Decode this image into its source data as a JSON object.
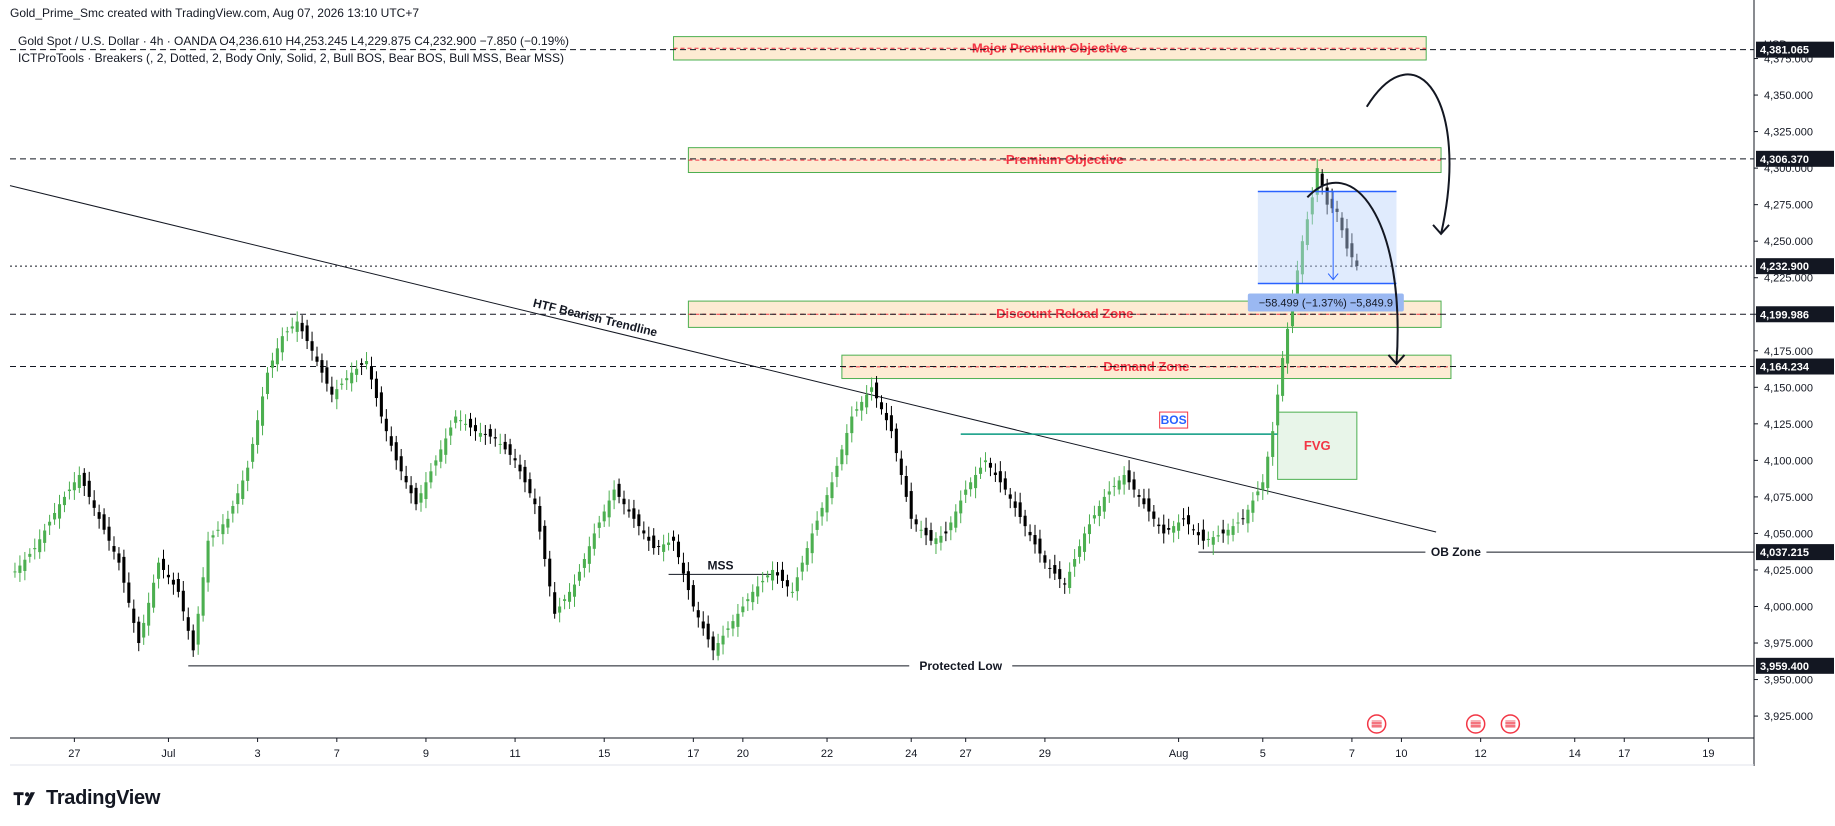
{
  "header": {
    "publisher": "Gold_Prime_Smc created with TradingView.com, Aug 07, 2026 13:10 UTC+7"
  },
  "legend": {
    "line1": "Gold Spot / U.S. Dollar · 4h · OANDA  O4,236.610  H4,253.245  L4,229.875  C4,232.900  −7.850 (−0.19%)",
    "line2": "ICTProTools · Breakers (, 2, Dotted, 2, Body Only, Solid, 2, Bull BOS, Bear BOS, Bull MSS, Bear MSS)"
  },
  "footer": {
    "brand": "TradingView"
  },
  "colors": {
    "bull": "#4caf50",
    "bear": "#000000",
    "zone_fill": "#fdebd3",
    "zone_border": "#4caf50",
    "zone_label": "#f23645",
    "fvg_fill": "#e8f5e9",
    "measure_fill": "#bbd2fb",
    "measure_border": "#2962ff",
    "structure_green": "#089981",
    "structure_red": "#f23645"
  },
  "chart_data": {
    "type": "candlestick",
    "symbol": "Gold Spot / U.S. Dollar",
    "timeframe": "4h",
    "exchange": "OANDA",
    "ohlc_last": {
      "open": 4236.61,
      "high": 4253.245,
      "low": 4229.875,
      "close": 4232.9,
      "change": -7.85,
      "change_pct": -0.19
    },
    "y_axis": {
      "currency": "USD",
      "range": [
        3910,
        4400
      ],
      "ticks": [
        3925,
        3950,
        3975,
        4000,
        4025,
        4050,
        4075,
        4100,
        4125,
        4150,
        4175,
        4200,
        4225,
        4250,
        4275,
        4300,
        4325,
        4350,
        4375
      ],
      "tick_labels": [
        "3,925.000",
        "3,950.000",
        "3,975.000",
        "4,000.000",
        "4,025.000",
        "4,050.000",
        "4,075.000",
        "4,100.000",
        "4,125.000",
        "4,150.000",
        "4,175.000",
        "4,200.000",
        "4,225.000",
        "4,250.000",
        "4,275.000",
        "4,300.000",
        "4,325.000",
        "4,350.000",
        "4,375.000"
      ]
    },
    "x_axis": {
      "range": [
        0,
        352
      ],
      "ticks": [
        {
          "i": 13,
          "label": "27"
        },
        {
          "i": 32,
          "label": "Jul"
        },
        {
          "i": 50,
          "label": "3"
        },
        {
          "i": 66,
          "label": "7"
        },
        {
          "i": 84,
          "label": "9"
        },
        {
          "i": 102,
          "label": "11"
        },
        {
          "i": 120,
          "label": "15"
        },
        {
          "i": 138,
          "label": "17"
        },
        {
          "i": 148,
          "label": "20"
        },
        {
          "i": 165,
          "label": "22"
        },
        {
          "i": 182,
          "label": "24"
        },
        {
          "i": 193,
          "label": "27"
        },
        {
          "i": 209,
          "label": "29"
        },
        {
          "i": 236,
          "label": "Aug"
        },
        {
          "i": 253,
          "label": "5"
        },
        {
          "i": 271,
          "label": "7"
        },
        {
          "i": 281,
          "label": "10"
        },
        {
          "i": 297,
          "label": "12"
        },
        {
          "i": 316,
          "label": "14"
        },
        {
          "i": 326,
          "label": "17"
        },
        {
          "i": 343,
          "label": "19"
        }
      ]
    },
    "grid": false,
    "anchors": [
      [
        0,
        4020
      ],
      [
        5,
        4040
      ],
      [
        10,
        4070
      ],
      [
        14,
        4090
      ],
      [
        18,
        4060
      ],
      [
        22,
        4030
      ],
      [
        26,
        3975
      ],
      [
        30,
        4030
      ],
      [
        34,
        4010
      ],
      [
        37,
        3970
      ],
      [
        40,
        4045
      ],
      [
        44,
        4060
      ],
      [
        48,
        4095
      ],
      [
        52,
        4160
      ],
      [
        55,
        4185
      ],
      [
        58,
        4195
      ],
      [
        61,
        4175
      ],
      [
        65,
        4145
      ],
      [
        69,
        4160
      ],
      [
        72,
        4168
      ],
      [
        75,
        4130
      ],
      [
        78,
        4100
      ],
      [
        82,
        4070
      ],
      [
        86,
        4100
      ],
      [
        90,
        4130
      ],
      [
        94,
        4120
      ],
      [
        98,
        4115
      ],
      [
        102,
        4100
      ],
      [
        106,
        4070
      ],
      [
        110,
        3995
      ],
      [
        114,
        4015
      ],
      [
        118,
        4050
      ],
      [
        122,
        4080
      ],
      [
        126,
        4060
      ],
      [
        130,
        4040
      ],
      [
        134,
        4045
      ],
      [
        138,
        4000
      ],
      [
        142,
        3970
      ],
      [
        146,
        3990
      ],
      [
        150,
        4010
      ],
      [
        154,
        4025
      ],
      [
        158,
        4010
      ],
      [
        162,
        4050
      ],
      [
        166,
        4085
      ],
      [
        170,
        4130
      ],
      [
        174,
        4150
      ],
      [
        178,
        4120
      ],
      [
        182,
        4060
      ],
      [
        186,
        4045
      ],
      [
        189,
        4050
      ],
      [
        193,
        4080
      ],
      [
        197,
        4100
      ],
      [
        201,
        4080
      ],
      [
        205,
        4055
      ],
      [
        209,
        4030
      ],
      [
        213,
        4015
      ],
      [
        217,
        4050
      ],
      [
        221,
        4075
      ],
      [
        225,
        4090
      ],
      [
        229,
        4070
      ],
      [
        233,
        4050
      ],
      [
        237,
        4060
      ],
      [
        241,
        4045
      ],
      [
        245,
        4050
      ],
      [
        249,
        4060
      ],
      [
        253,
        4085
      ],
      [
        255,
        4120
      ],
      [
        257,
        4170
      ],
      [
        259,
        4210
      ],
      [
        261,
        4250
      ],
      [
        263,
        4280
      ],
      [
        264,
        4300
      ],
      [
        266,
        4275
      ],
      [
        268,
        4270
      ],
      [
        270,
        4245
      ],
      [
        272,
        4233
      ]
    ],
    "horizontal_levels": [
      {
        "price": 4381.065,
        "label": "4,381.065",
        "style": "dashed"
      },
      {
        "price": 4306.37,
        "label": "4,306.370",
        "style": "dashed"
      },
      {
        "price": 4232.9,
        "label": "4,232.900",
        "style": "dotted"
      },
      {
        "price": 4199.986,
        "label": "4,199.986",
        "style": "dashed"
      },
      {
        "price": 4164.234,
        "label": "4,164.234",
        "style": "dashed"
      },
      {
        "price": 4037.215,
        "label": "4,037.215",
        "style": "solid",
        "text": "OB Zone",
        "from": 240
      },
      {
        "price": 3959.4,
        "label": "3,959.400",
        "style": "solid",
        "text": "Protected Low",
        "from": 36
      }
    ],
    "zones": [
      {
        "label": "Major Premium Objective",
        "from": 134,
        "to": 286,
        "top": 4390,
        "bottom": 4374
      },
      {
        "label": "Premium Objective",
        "from": 137,
        "to": 289,
        "top": 4314,
        "bottom": 4297
      },
      {
        "label": "Discount Reload Zone",
        "from": 137,
        "to": 289,
        "top": 4209,
        "bottom": 4191
      },
      {
        "label": "Demand Zone",
        "from": 168,
        "to": 291,
        "top": 4172,
        "bottom": 4156
      }
    ],
    "fvg": {
      "label": "FVG",
      "from": 256,
      "to": 272,
      "top": 4133,
      "bottom": 4087
    },
    "bos": {
      "label": "BOS",
      "price": 4118,
      "from": 192,
      "to": 256
    },
    "mss": {
      "label": "MSS",
      "price": 4022,
      "from": 133,
      "to": 154
    },
    "trendline": {
      "label": "HTF Bearish Trendline",
      "start": [
        0,
        4288
      ],
      "end": [
        288,
        4051
      ]
    },
    "measurement": {
      "label": "−58.499 (−1.37%) −5,849.9",
      "from": 252,
      "to": 280,
      "top": 4284,
      "bottom": 4221
    },
    "projections": [
      {
        "points": [
          [
            274,
            4342
          ],
          [
            284,
            4396
          ],
          [
            295,
            4345
          ],
          [
            289,
            4255
          ]
        ]
      },
      {
        "points": [
          [
            262,
            4280
          ],
          [
            271,
            4312
          ],
          [
            282,
            4265
          ],
          [
            280,
            4166
          ]
        ]
      }
    ],
    "event_icons": [
      276,
      296,
      303
    ]
  }
}
